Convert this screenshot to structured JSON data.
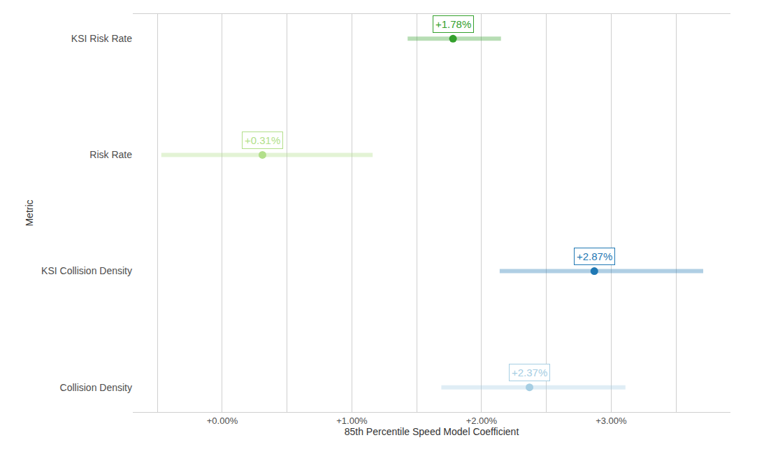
{
  "chart_data": {
    "type": "dot",
    "orientation": "horizontal",
    "x_label": "85th Percentile Speed Model Coefficient",
    "y_label": "Metric",
    "categories": [
      "KSI Risk Rate",
      "Risk Rate",
      "KSI Collision Density",
      "Collision Density"
    ],
    "values": [
      1.78,
      0.31,
      2.87,
      2.37
    ],
    "value_labels": [
      "+1.78%",
      "+0.31%",
      "+2.87%",
      "+2.37%"
    ],
    "lower": [
      1.43,
      -0.47,
      2.14,
      1.69
    ],
    "upper": [
      2.15,
      1.16,
      3.71,
      3.11
    ],
    "colors": [
      "#33a02c",
      "#b2df8a",
      "#1f78b4",
      "#a6cee3"
    ],
    "data_labels": true,
    "marker": "circle",
    "xlim": [
      -0.69,
      3.92
    ],
    "xticks": [
      {
        "value": 0,
        "label": "+0.00%"
      },
      {
        "value": 1,
        "label": "+1.00%"
      },
      {
        "value": 2,
        "label": "+2.00%"
      },
      {
        "value": 3,
        "label": "+3.00%"
      }
    ],
    "grid": true
  }
}
